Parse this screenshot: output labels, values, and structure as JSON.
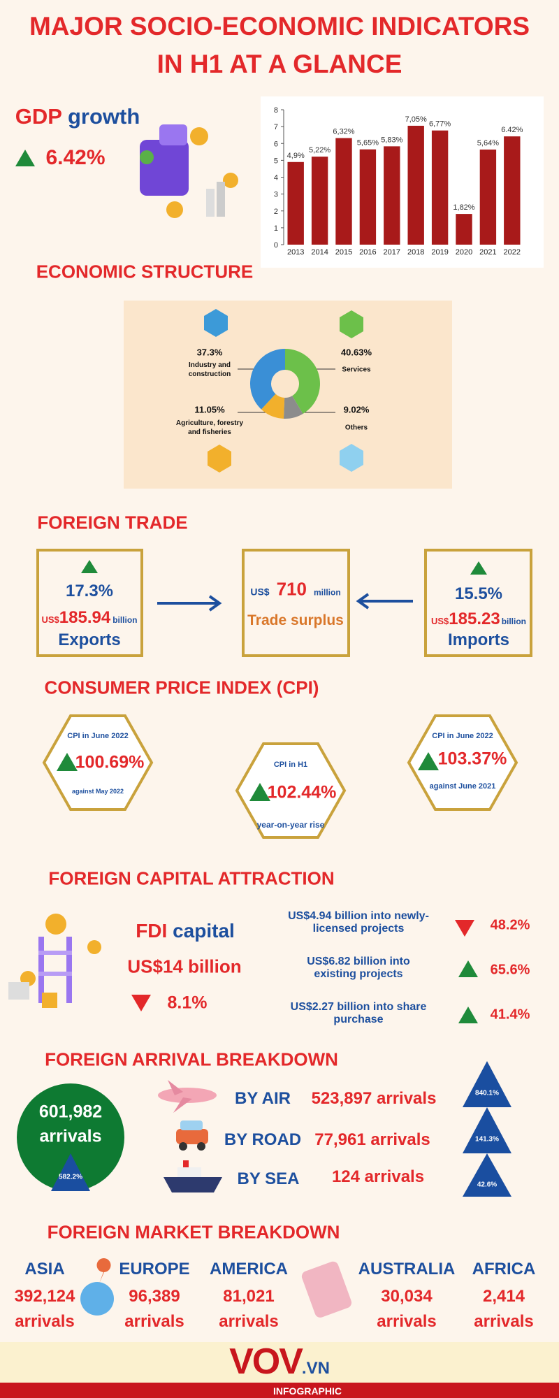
{
  "header": {
    "title_line1": "MAJOR SOCIO-ECONOMIC  INDICATORS",
    "title_line2": "IN H1 AT A GLANCE"
  },
  "gdp": {
    "label_gdp": "GDP",
    "label_growth": "growth",
    "value": "6.42%"
  },
  "gdp_chart": {
    "type": "bar",
    "categories": [
      "2013",
      "2014",
      "2015",
      "2016",
      "2017",
      "2018",
      "2019",
      "2020",
      "2021",
      "2022"
    ],
    "values": [
      4.9,
      5.22,
      6.32,
      5.65,
      5.83,
      7.05,
      6.77,
      1.82,
      5.64,
      6.42
    ],
    "value_labels": [
      "4,9%",
      "5,22%",
      "6,32%",
      "5,65%",
      "5,83%",
      "7,05%",
      "6,77%",
      "1,82%",
      "5,64%",
      "6.42%"
    ],
    "color": "#a81a1a",
    "ylim": [
      0,
      8
    ],
    "yticks": [
      0,
      1,
      2,
      3,
      4,
      5,
      6,
      7,
      8
    ]
  },
  "economic_structure": {
    "title": "ECONOMIC STRUCTURE",
    "chart": {
      "type": "pie",
      "categories": [
        "Services",
        "Others",
        "Agriculture, forestry and fisheries",
        "Industry and construction"
      ],
      "values": [
        40.63,
        9.02,
        11.05,
        37.3
      ],
      "value_labels": [
        "40.63%",
        "9.02%",
        "11.05%",
        "37.3%"
      ],
      "colors": [
        "#6cc04a",
        "#8c8c8c",
        "#f2b02c",
        "#3a8fd6"
      ]
    }
  },
  "trade": {
    "title": "FOREIGN TRADE",
    "exports": {
      "change": "17.3%",
      "currency": "US$",
      "amount": "185.94",
      "unit": "billion",
      "label": "Exports"
    },
    "surplus": {
      "currency": "US$",
      "amount": "710",
      "unit": "million",
      "label": "Trade surplus"
    },
    "imports": {
      "change": "15.5%",
      "currency": "US$",
      "amount": "185.23",
      "unit": "billion",
      "label": "Imports"
    }
  },
  "cpi": {
    "title": "CONSUMER PRICE INDEX (CPI)",
    "items": [
      {
        "label": "CPI in June 2022",
        "value": "100.69%",
        "note": "against May 2022"
      },
      {
        "label": "CPI in H1",
        "value": "102.44%",
        "note": "year-on-year rise"
      },
      {
        "label": "CPI in June 2022",
        "value": "103.37%",
        "note": "against June 2021"
      }
    ]
  },
  "fdi": {
    "title": "FOREIGN CAPITAL ATTRACTION",
    "label_fdi": "FDI",
    "label_capital": "capital",
    "amount": "US$14 billion",
    "change": "8.1%",
    "items": [
      {
        "text": "US$4.94 billion into newly-licensed projects",
        "change": "48.2%"
      },
      {
        "text": "US$6.82 billion into existing projects",
        "change": "65.6%"
      },
      {
        "text": "US$2.27 billion into share purchase",
        "change": "41.4%"
      }
    ]
  },
  "arrivals": {
    "title": "FOREIGN ARRIVAL BREAKDOWN",
    "total": "601,982",
    "total_unit": "arrivals",
    "total_change": "582.2%",
    "modes": [
      {
        "mode": "BY AIR",
        "count": "523,897 arrivals",
        "change": "840.1%"
      },
      {
        "mode": "BY ROAD",
        "count": "77,961 arrivals",
        "change": "141.3%"
      },
      {
        "mode": "BY SEA",
        "count": "124 arrivals",
        "change": "42.6%"
      }
    ]
  },
  "markets": {
    "title": "FOREIGN MARKET BREAKDOWN",
    "regions": [
      {
        "name": "ASIA",
        "count": "392,124",
        "unit": "arrivals"
      },
      {
        "name": "EUROPE",
        "count": "96,389",
        "unit": "arrivals"
      },
      {
        "name": "AMERICA",
        "count": "81,021",
        "unit": "arrivals"
      },
      {
        "name": "AUSTRALIA",
        "count": "30,034",
        "unit": "arrivals"
      },
      {
        "name": "AFRICA",
        "count": "2,414",
        "unit": "arrivals"
      }
    ]
  },
  "footer": {
    "logo": "VOV",
    "logo_suffix": ".VN",
    "tagline": "INFOGRAPHIC"
  }
}
